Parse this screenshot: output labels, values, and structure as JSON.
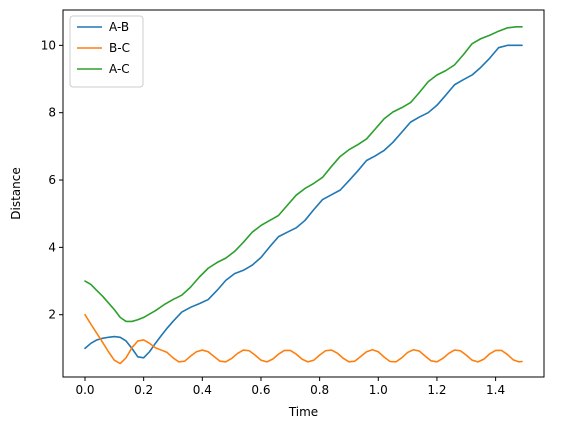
{
  "chart_data": {
    "type": "line",
    "title": "",
    "xlabel": "Time",
    "ylabel": "Distance",
    "xlim": [
      -0.075,
      1.565
    ],
    "ylim": [
      0.15,
      11.05
    ],
    "xticks": [
      0.0,
      0.2,
      0.4,
      0.6,
      0.8,
      1.0,
      1.2,
      1.4
    ],
    "xtick_labels": [
      "0.0",
      "0.2",
      "0.4",
      "0.6",
      "0.8",
      "1.0",
      "1.2",
      "1.4"
    ],
    "yticks": [
      2,
      4,
      6,
      8,
      10
    ],
    "ytick_labels": [
      "2",
      "4",
      "6",
      "8",
      "10"
    ],
    "grid": false,
    "legend_position": "top-left",
    "series": [
      {
        "name": "A-B",
        "color": "#1f77b4",
        "x": [
          0.0,
          0.02,
          0.04,
          0.06,
          0.08,
          0.1,
          0.12,
          0.14,
          0.16,
          0.18,
          0.2,
          0.22,
          0.24,
          0.26,
          0.28,
          0.3,
          0.33,
          0.36,
          0.39,
          0.42,
          0.45,
          0.48,
          0.51,
          0.54,
          0.57,
          0.6,
          0.63,
          0.66,
          0.69,
          0.72,
          0.75,
          0.78,
          0.81,
          0.84,
          0.87,
          0.9,
          0.93,
          0.96,
          0.99,
          1.02,
          1.05,
          1.08,
          1.11,
          1.14,
          1.17,
          1.2,
          1.23,
          1.26,
          1.29,
          1.32,
          1.35,
          1.38,
          1.41,
          1.44,
          1.47,
          1.49
        ],
        "y": [
          1.0,
          1.15,
          1.25,
          1.3,
          1.33,
          1.35,
          1.33,
          1.22,
          1.0,
          0.75,
          0.72,
          0.9,
          1.15,
          1.38,
          1.6,
          1.8,
          2.08,
          2.22,
          2.33,
          2.45,
          2.72,
          3.02,
          3.22,
          3.32,
          3.47,
          3.7,
          4.02,
          4.32,
          4.45,
          4.58,
          4.8,
          5.12,
          5.42,
          5.56,
          5.7,
          5.98,
          6.27,
          6.58,
          6.72,
          6.88,
          7.12,
          7.42,
          7.72,
          7.87,
          8.0,
          8.22,
          8.52,
          8.83,
          8.98,
          9.12,
          9.35,
          9.62,
          9.93,
          10.0,
          10.0,
          10.0
        ]
      },
      {
        "name": "B-C",
        "color": "#ff7f0e",
        "x": [
          0.0,
          0.02,
          0.04,
          0.06,
          0.08,
          0.1,
          0.12,
          0.14,
          0.16,
          0.18,
          0.2,
          0.22,
          0.24,
          0.26,
          0.28,
          0.3,
          0.32,
          0.34,
          0.36,
          0.38,
          0.4,
          0.42,
          0.44,
          0.46,
          0.48,
          0.5,
          0.52,
          0.54,
          0.56,
          0.58,
          0.6,
          0.62,
          0.64,
          0.66,
          0.68,
          0.7,
          0.72,
          0.74,
          0.76,
          0.78,
          0.8,
          0.82,
          0.84,
          0.86,
          0.88,
          0.9,
          0.92,
          0.94,
          0.96,
          0.98,
          1.0,
          1.02,
          1.04,
          1.06,
          1.08,
          1.1,
          1.12,
          1.14,
          1.16,
          1.18,
          1.2,
          1.22,
          1.24,
          1.26,
          1.28,
          1.3,
          1.32,
          1.34,
          1.36,
          1.38,
          1.4,
          1.42,
          1.44,
          1.46,
          1.48,
          1.49
        ],
        "y": [
          2.0,
          1.72,
          1.45,
          1.18,
          0.9,
          0.65,
          0.55,
          0.72,
          1.02,
          1.22,
          1.25,
          1.15,
          1.02,
          0.95,
          0.88,
          0.72,
          0.6,
          0.62,
          0.77,
          0.9,
          0.95,
          0.9,
          0.76,
          0.62,
          0.6,
          0.7,
          0.85,
          0.95,
          0.93,
          0.8,
          0.65,
          0.6,
          0.68,
          0.83,
          0.94,
          0.94,
          0.83,
          0.68,
          0.6,
          0.65,
          0.8,
          0.93,
          0.95,
          0.86,
          0.71,
          0.6,
          0.62,
          0.76,
          0.9,
          0.96,
          0.9,
          0.74,
          0.61,
          0.6,
          0.72,
          0.88,
          0.96,
          0.92,
          0.77,
          0.63,
          0.6,
          0.7,
          0.85,
          0.95,
          0.93,
          0.8,
          0.65,
          0.6,
          0.68,
          0.84,
          0.94,
          0.94,
          0.82,
          0.66,
          0.6,
          0.61
        ]
      },
      {
        "name": "A-C",
        "color": "#2ca02c",
        "x": [
          0.0,
          0.02,
          0.04,
          0.06,
          0.08,
          0.1,
          0.12,
          0.14,
          0.16,
          0.18,
          0.2,
          0.22,
          0.24,
          0.27,
          0.3,
          0.33,
          0.36,
          0.39,
          0.42,
          0.45,
          0.48,
          0.51,
          0.54,
          0.57,
          0.6,
          0.63,
          0.66,
          0.69,
          0.72,
          0.75,
          0.78,
          0.81,
          0.84,
          0.87,
          0.9,
          0.93,
          0.96,
          0.99,
          1.02,
          1.05,
          1.08,
          1.11,
          1.14,
          1.17,
          1.2,
          1.23,
          1.26,
          1.29,
          1.32,
          1.35,
          1.38,
          1.41,
          1.44,
          1.47,
          1.49
        ],
        "y": [
          3.0,
          2.9,
          2.72,
          2.55,
          2.35,
          2.15,
          1.92,
          1.8,
          1.8,
          1.85,
          1.92,
          2.02,
          2.12,
          2.3,
          2.45,
          2.58,
          2.82,
          3.12,
          3.38,
          3.55,
          3.68,
          3.88,
          4.15,
          4.45,
          4.65,
          4.8,
          4.95,
          5.25,
          5.55,
          5.75,
          5.9,
          6.08,
          6.4,
          6.7,
          6.9,
          7.05,
          7.22,
          7.52,
          7.82,
          8.02,
          8.15,
          8.3,
          8.6,
          8.92,
          9.12,
          9.25,
          9.42,
          9.72,
          10.05,
          10.2,
          10.3,
          10.42,
          10.52,
          10.55,
          10.55
        ]
      }
    ]
  }
}
